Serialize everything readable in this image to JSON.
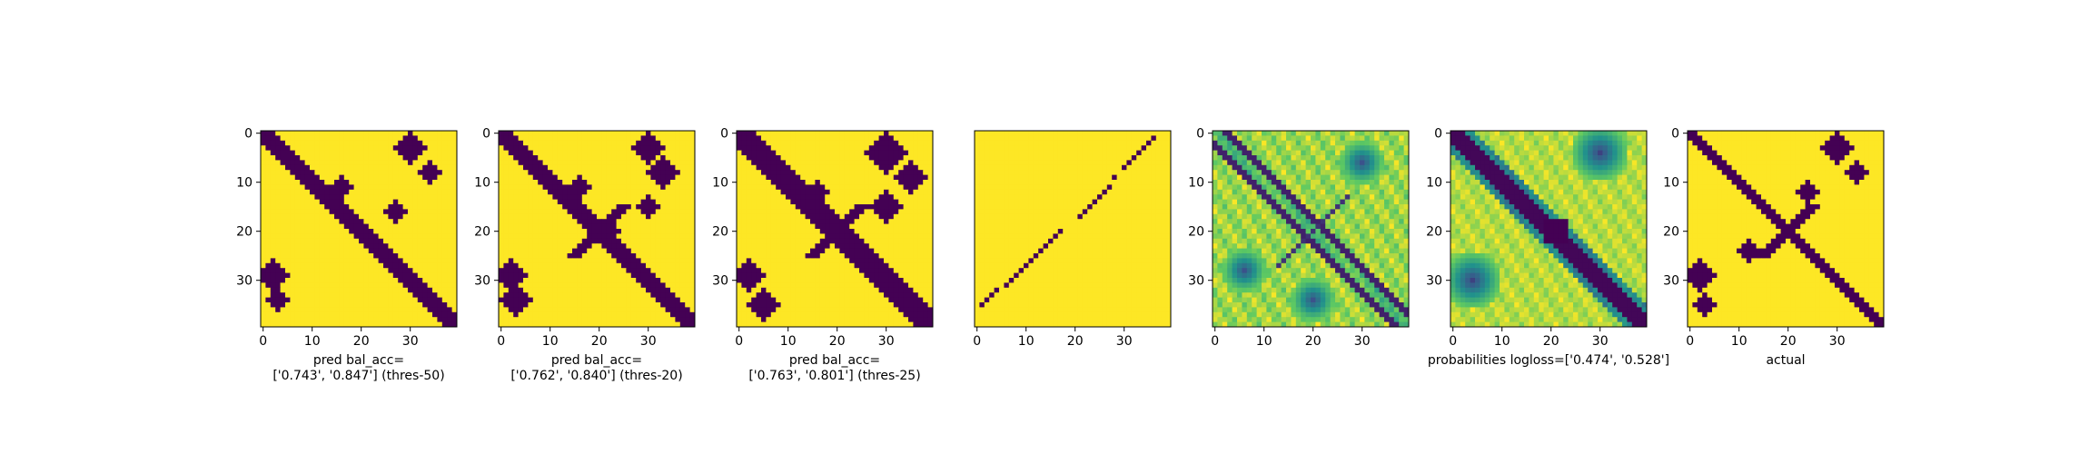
{
  "figure": {
    "colors": {
      "low": "#440154",
      "mid_low": "#31688e",
      "mid": "#21918c",
      "mid_high": "#5ec962",
      "high": "#fde725"
    }
  },
  "chart_data": [
    {
      "type": "heatmap",
      "title": "",
      "xlabel_lines": [
        "pred bal_acc=",
        "['0.743', '0.847'] (thres-50)"
      ],
      "xlim": [
        0,
        39
      ],
      "ylim": [
        39,
        0
      ],
      "xticks": [
        0,
        10,
        20,
        30
      ],
      "yticks": [
        0,
        10,
        20,
        30
      ],
      "show_yticks": true,
      "pattern": {
        "kind": "binary",
        "band_halfwidth": 2,
        "cross": false,
        "blobs": [
          [
            29,
            2,
            3
          ],
          [
            34,
            3,
            2
          ],
          [
            3,
            30,
            3
          ],
          [
            8,
            34,
            2
          ],
          [
            16,
            27,
            2
          ],
          [
            11,
            16,
            2
          ]
        ]
      }
    },
    {
      "type": "heatmap",
      "title": "",
      "xlabel_lines": [
        "pred bal_acc=",
        "['0.762', '0.840'] (thres-20)"
      ],
      "xlim": [
        0,
        39
      ],
      "ylim": [
        39,
        0
      ],
      "xticks": [
        0,
        10,
        20,
        30
      ],
      "yticks": [
        0,
        10,
        20,
        30
      ],
      "show_yticks": true,
      "pattern": {
        "kind": "binary",
        "band_halfwidth": 2,
        "cross": true,
        "blobs": [
          [
            29,
            2,
            3
          ],
          [
            34,
            3,
            3
          ],
          [
            3,
            30,
            3
          ],
          [
            8,
            33,
            3
          ],
          [
            15,
            30,
            2
          ],
          [
            11,
            16,
            2
          ],
          [
            20,
            22,
            2
          ]
        ]
      }
    },
    {
      "type": "heatmap",
      "title": "",
      "xlabel_lines": [
        "pred bal_acc=",
        "['0.763', '0.801'] (thres-25)"
      ],
      "xlim": [
        0,
        39
      ],
      "ylim": [
        39,
        0
      ],
      "xticks": [
        0,
        10,
        20,
        30
      ],
      "yticks": [
        0,
        10,
        20,
        30
      ],
      "show_yticks": true,
      "pattern": {
        "kind": "binary",
        "band_halfwidth": 3,
        "cross": true,
        "blobs": [
          [
            29,
            2,
            3
          ],
          [
            35,
            5,
            3
          ],
          [
            4,
            30,
            4
          ],
          [
            9,
            35,
            3
          ],
          [
            15,
            30,
            3
          ],
          [
            12,
            16,
            2
          ]
        ]
      }
    },
    {
      "type": "heatmap",
      "title": "",
      "xlabel_lines": [],
      "xlim": [
        0,
        39
      ],
      "ylim": [
        39,
        0
      ],
      "xticks": [
        0,
        10,
        20,
        30
      ],
      "yticks": [
        0,
        10,
        20,
        30
      ],
      "show_yticks": false,
      "pattern": {
        "kind": "antidiagonal",
        "cells": [
          [
            35,
            1
          ],
          [
            34,
            2
          ],
          [
            33,
            3
          ],
          [
            32,
            4
          ],
          [
            31,
            6
          ],
          [
            30,
            7
          ],
          [
            29,
            8
          ],
          [
            28,
            9
          ],
          [
            27,
            10
          ],
          [
            26,
            11
          ],
          [
            25,
            12
          ],
          [
            24,
            13
          ],
          [
            23,
            14
          ],
          [
            22,
            15
          ],
          [
            21,
            16
          ],
          [
            20,
            17
          ],
          [
            17,
            21
          ],
          [
            16,
            22
          ],
          [
            15,
            23
          ],
          [
            14,
            24
          ],
          [
            13,
            25
          ],
          [
            12,
            26
          ],
          [
            11,
            27
          ],
          [
            9,
            28
          ],
          [
            7,
            30
          ],
          [
            6,
            31
          ],
          [
            5,
            32
          ],
          [
            4,
            33
          ],
          [
            3,
            34
          ],
          [
            2,
            35
          ],
          [
            1,
            36
          ]
        ]
      }
    },
    {
      "type": "heatmap",
      "title": "",
      "xlabel_lines": [],
      "xlim": [
        0,
        39
      ],
      "ylim": [
        39,
        0
      ],
      "xticks": [
        0,
        10,
        20,
        30
      ],
      "yticks": [
        0,
        10,
        20,
        30
      ],
      "show_yticks": true,
      "pattern": {
        "kind": "continuous",
        "style": "offdiag_lines"
      }
    },
    {
      "type": "heatmap",
      "title": "",
      "xlabel_lines": [
        "probabilities logloss=['0.474', '0.528']"
      ],
      "xlim": [
        0,
        39
      ],
      "ylim": [
        39,
        0
      ],
      "xticks": [
        0,
        10,
        20,
        30
      ],
      "yticks": [
        0,
        10,
        20,
        30
      ],
      "show_yticks": true,
      "pattern": {
        "kind": "continuous",
        "style": "wide_band"
      }
    },
    {
      "type": "heatmap",
      "title": "",
      "xlabel_lines": [
        "actual"
      ],
      "xlim": [
        0,
        39
      ],
      "ylim": [
        39,
        0
      ],
      "xticks": [
        0,
        10,
        20,
        30
      ],
      "yticks": [
        0,
        10,
        20,
        30
      ],
      "show_yticks": true,
      "pattern": {
        "kind": "binary",
        "band_halfwidth": 1,
        "cross": true,
        "blobs": [
          [
            29,
            2,
            3
          ],
          [
            35,
            3,
            2
          ],
          [
            3,
            30,
            3
          ],
          [
            8,
            34,
            2
          ],
          [
            12,
            24,
            2
          ],
          [
            24,
            12,
            2
          ],
          [
            33,
            33,
            1
          ]
        ]
      }
    }
  ]
}
